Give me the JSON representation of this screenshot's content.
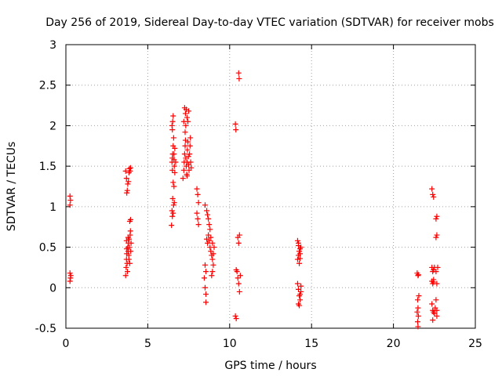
{
  "chart_data": {
    "type": "scatter",
    "title": "Day 256 of 2019, Sidereal Day-to-day VTEC variation (SDTVAR) for receiver mobs",
    "xlabel": "GPS time / hours",
    "ylabel": "SDTVAR / TECUs",
    "xlim": [
      0,
      25
    ],
    "ylim": [
      -0.5,
      3
    ],
    "xticks": [
      "0",
      "5",
      "10",
      "15",
      "20",
      "25"
    ],
    "yticks": [
      "-0.5",
      "0",
      "0.5",
      "1",
      "1.5",
      "2",
      "2.5",
      "3"
    ],
    "grid": true,
    "marker": "+",
    "color": "#ff0000",
    "series": [
      {
        "name": "SDTVAR",
        "points": [
          [
            0.25,
            1.13
          ],
          [
            0.25,
            1.02
          ],
          [
            0.28,
            1.08
          ],
          [
            0.25,
            0.18
          ],
          [
            0.28,
            0.12
          ],
          [
            0.25,
            0.08
          ],
          [
            0.3,
            0.15
          ],
          [
            3.65,
            1.44
          ],
          [
            3.7,
            1.35
          ],
          [
            3.72,
            1.17
          ],
          [
            3.78,
            1.28
          ],
          [
            3.82,
            1.31
          ],
          [
            3.85,
            1.42
          ],
          [
            3.88,
            1.47
          ],
          [
            3.92,
            1.44
          ],
          [
            3.95,
            1.48
          ],
          [
            3.75,
            1.2
          ],
          [
            3.65,
            0.15
          ],
          [
            3.68,
            0.25
          ],
          [
            3.7,
            0.35
          ],
          [
            3.72,
            0.42
          ],
          [
            3.74,
            0.3
          ],
          [
            3.76,
            0.2
          ],
          [
            3.78,
            0.5
          ],
          [
            3.8,
            0.45
          ],
          [
            3.82,
            0.55
          ],
          [
            3.84,
            0.4
          ],
          [
            3.86,
            0.6
          ],
          [
            3.88,
            0.5
          ],
          [
            3.9,
            0.3
          ],
          [
            3.92,
            0.65
          ],
          [
            3.94,
            0.7
          ],
          [
            3.96,
            0.45
          ],
          [
            3.98,
            0.55
          ],
          [
            3.72,
            0.48
          ],
          [
            3.85,
            0.35
          ],
          [
            3.9,
            0.82
          ],
          [
            3.95,
            0.84
          ],
          [
            3.8,
            0.62
          ],
          [
            3.7,
            0.58
          ],
          [
            6.45,
            0.77
          ],
          [
            6.48,
            0.95
          ],
          [
            6.5,
            0.88
          ],
          [
            6.52,
            1.1
          ],
          [
            6.55,
            1.3
          ],
          [
            6.5,
            1.45
          ],
          [
            6.48,
            1.55
          ],
          [
            6.52,
            1.65
          ],
          [
            6.55,
            1.75
          ],
          [
            6.58,
            1.85
          ],
          [
            6.5,
            1.95
          ],
          [
            6.52,
            2.05
          ],
          [
            6.55,
            2.12
          ],
          [
            6.48,
            2.0
          ],
          [
            6.6,
            1.58
          ],
          [
            6.62,
            1.5
          ],
          [
            6.65,
            1.42
          ],
          [
            6.6,
            1.25
          ],
          [
            6.62,
            1.05
          ],
          [
            6.58,
            1.02
          ],
          [
            6.55,
            0.92
          ],
          [
            6.6,
            1.65
          ],
          [
            6.65,
            1.72
          ],
          [
            6.7,
            1.55
          ],
          [
            6.5,
            1.6
          ],
          [
            7.15,
            1.35
          ],
          [
            7.2,
            1.45
          ],
          [
            7.22,
            1.55
          ],
          [
            7.25,
            1.65
          ],
          [
            7.28,
            1.75
          ],
          [
            7.3,
            1.82
          ],
          [
            7.32,
            1.6
          ],
          [
            7.35,
            1.5
          ],
          [
            7.38,
            1.4
          ],
          [
            7.4,
            1.55
          ],
          [
            7.42,
            1.7
          ],
          [
            7.45,
            1.8
          ],
          [
            7.48,
            1.62
          ],
          [
            7.5,
            1.52
          ],
          [
            7.52,
            1.45
          ],
          [
            7.55,
            1.65
          ],
          [
            7.58,
            1.75
          ],
          [
            7.6,
            1.85
          ],
          [
            7.62,
            1.55
          ],
          [
            7.65,
            1.48
          ],
          [
            7.25,
            2.22
          ],
          [
            7.3,
            2.15
          ],
          [
            7.35,
            2.2
          ],
          [
            7.4,
            2.1
          ],
          [
            7.45,
            2.05
          ],
          [
            7.5,
            2.18
          ],
          [
            7.32,
            2.0
          ],
          [
            7.28,
            1.92
          ],
          [
            7.2,
            2.05
          ],
          [
            7.4,
            1.38
          ],
          [
            8.0,
            1.22
          ],
          [
            8.05,
            1.15
          ],
          [
            8.1,
            1.05
          ],
          [
            8.0,
            0.92
          ],
          [
            8.05,
            0.85
          ],
          [
            8.1,
            0.78
          ],
          [
            8.5,
            1.02
          ],
          [
            8.6,
            0.95
          ],
          [
            8.65,
            0.9
          ],
          [
            8.7,
            0.85
          ],
          [
            8.75,
            0.78
          ],
          [
            8.8,
            0.72
          ],
          [
            8.7,
            0.65
          ],
          [
            8.75,
            0.58
          ],
          [
            8.8,
            0.5
          ],
          [
            8.85,
            0.45
          ],
          [
            8.9,
            0.4
          ],
          [
            8.95,
            0.35
          ],
          [
            9.0,
            0.42
          ],
          [
            9.05,
            0.5
          ],
          [
            8.6,
            0.6
          ],
          [
            8.65,
            0.55
          ],
          [
            8.5,
            0.28
          ],
          [
            8.55,
            0.2
          ],
          [
            8.45,
            0.12
          ],
          [
            8.5,
            0.0
          ],
          [
            8.55,
            -0.08
          ],
          [
            8.55,
            -0.18
          ],
          [
            8.9,
            0.15
          ],
          [
            8.95,
            0.2
          ],
          [
            9.0,
            0.28
          ],
          [
            8.85,
            0.62
          ],
          [
            8.95,
            0.55
          ],
          [
            10.35,
            2.02
          ],
          [
            10.38,
            1.95
          ],
          [
            10.55,
            2.65
          ],
          [
            10.58,
            2.58
          ],
          [
            10.5,
            0.62
          ],
          [
            10.55,
            0.55
          ],
          [
            10.6,
            0.65
          ],
          [
            10.4,
            0.22
          ],
          [
            10.45,
            0.2
          ],
          [
            10.5,
            0.12
          ],
          [
            10.55,
            0.05
          ],
          [
            10.6,
            -0.05
          ],
          [
            10.65,
            0.15
          ],
          [
            10.35,
            -0.35
          ],
          [
            10.4,
            -0.38
          ],
          [
            14.15,
            0.58
          ],
          [
            14.2,
            0.52
          ],
          [
            14.25,
            0.45
          ],
          [
            14.3,
            0.48
          ],
          [
            14.15,
            0.35
          ],
          [
            14.2,
            0.4
          ],
          [
            14.25,
            0.3
          ],
          [
            14.3,
            0.42
          ],
          [
            14.35,
            0.5
          ],
          [
            14.15,
            0.05
          ],
          [
            14.2,
            -0.02
          ],
          [
            14.25,
            -0.1
          ],
          [
            14.3,
            -0.15
          ],
          [
            14.35,
            -0.05
          ],
          [
            14.2,
            -0.2
          ],
          [
            14.25,
            -0.22
          ],
          [
            14.3,
            -0.08
          ],
          [
            14.35,
            0.02
          ],
          [
            14.2,
            0.55
          ],
          [
            14.3,
            0.36
          ],
          [
            21.45,
            0.18
          ],
          [
            21.5,
            0.15
          ],
          [
            21.52,
            0.16
          ],
          [
            21.48,
            -0.15
          ],
          [
            21.5,
            -0.25
          ],
          [
            21.52,
            -0.35
          ],
          [
            21.48,
            -0.42
          ],
          [
            21.5,
            -0.48
          ],
          [
            21.55,
            -0.1
          ],
          [
            21.45,
            -0.3
          ],
          [
            22.35,
            1.22
          ],
          [
            22.4,
            1.15
          ],
          [
            22.45,
            1.12
          ],
          [
            22.35,
            0.25
          ],
          [
            22.4,
            0.2
          ],
          [
            22.45,
            0.22
          ],
          [
            22.5,
            0.25
          ],
          [
            22.35,
            0.08
          ],
          [
            22.4,
            0.05
          ],
          [
            22.45,
            0.07
          ],
          [
            22.35,
            -0.2
          ],
          [
            22.4,
            -0.28
          ],
          [
            22.45,
            -0.3
          ],
          [
            22.5,
            -0.32
          ],
          [
            22.4,
            -0.4
          ],
          [
            22.55,
            -0.25
          ],
          [
            22.6,
            0.2
          ],
          [
            22.65,
            0.05
          ],
          [
            22.6,
            -0.15
          ],
          [
            22.65,
            -0.28
          ],
          [
            22.6,
            0.62
          ],
          [
            22.65,
            0.65
          ],
          [
            22.6,
            0.85
          ],
          [
            22.65,
            0.88
          ],
          [
            22.7,
            0.25
          ],
          [
            22.65,
            -0.35
          ],
          [
            22.45,
            0.1
          ]
        ]
      }
    ]
  }
}
